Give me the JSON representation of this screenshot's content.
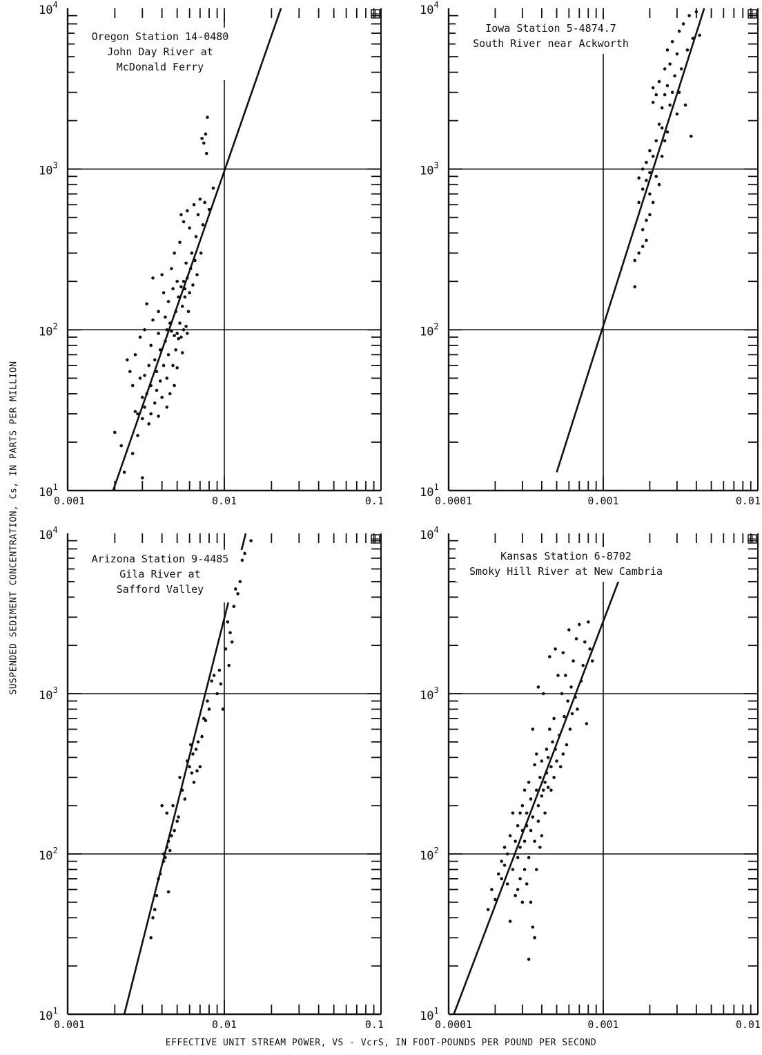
{
  "figure": {
    "ylabel": "SUSPENDED SEDIMENT CONCENTRATION, Cs, IN PARTS PER MILLION",
    "xlabel": "EFFECTIVE UNIT STREAM POWER, VS - VcrS, IN FOOT-POUNDS PER POUND PER SECOND"
  },
  "chart_data": [
    {
      "type": "scatter",
      "title": "Oregon Station 14-0480\nJohn Day River at\nMcDonald Ferry",
      "xscale": "log",
      "yscale": "log",
      "xlim": [
        0.001,
        0.1
      ],
      "ylim": [
        10,
        10000
      ],
      "xticklabels": [
        "0.001",
        "0.01",
        "0.1"
      ],
      "yticklabels": [
        "10^1",
        "10^2",
        "10^3",
        "10^4"
      ],
      "reference_lines": {
        "x": 0.01,
        "y": [
          100,
          1000
        ]
      },
      "fit_line": [
        [
          0.00195,
          10
        ],
        [
          0.023,
          10000
        ]
      ],
      "points": [
        [
          0.002,
          23
        ],
        [
          0.0022,
          19
        ],
        [
          0.0023,
          13
        ],
        [
          0.0024,
          65
        ],
        [
          0.0025,
          55
        ],
        [
          0.0026,
          45
        ],
        [
          0.0026,
          17
        ],
        [
          0.0027,
          31
        ],
        [
          0.0027,
          70
        ],
        [
          0.0028,
          30
        ],
        [
          0.0028,
          22
        ],
        [
          0.0029,
          50
        ],
        [
          0.0029,
          90
        ],
        [
          0.003,
          38
        ],
        [
          0.003,
          28
        ],
        [
          0.003,
          12
        ],
        [
          0.0031,
          100
        ],
        [
          0.0031,
          52
        ],
        [
          0.0031,
          33
        ],
        [
          0.0032,
          145
        ],
        [
          0.0032,
          40
        ],
        [
          0.0033,
          60
        ],
        [
          0.0033,
          26
        ],
        [
          0.0034,
          80
        ],
        [
          0.0034,
          45
        ],
        [
          0.0034,
          30
        ],
        [
          0.0035,
          210
        ],
        [
          0.0035,
          115
        ],
        [
          0.0036,
          65
        ],
        [
          0.0036,
          35
        ],
        [
          0.0037,
          55
        ],
        [
          0.0037,
          42
        ],
        [
          0.0038,
          130
        ],
        [
          0.0038,
          95
        ],
        [
          0.0038,
          29
        ],
        [
          0.0039,
          75
        ],
        [
          0.0039,
          48
        ],
        [
          0.004,
          220
        ],
        [
          0.004,
          38
        ],
        [
          0.0041,
          170
        ],
        [
          0.0041,
          60
        ],
        [
          0.0042,
          120
        ],
        [
          0.0042,
          85
        ],
        [
          0.0043,
          100
        ],
        [
          0.0043,
          50
        ],
        [
          0.0043,
          33
        ],
        [
          0.0044,
          150
        ],
        [
          0.0044,
          70
        ],
        [
          0.0045,
          110
        ],
        [
          0.0045,
          40
        ],
        [
          0.0046,
          240
        ],
        [
          0.0046,
          98
        ],
        [
          0.0047,
          180
        ],
        [
          0.0047,
          60
        ],
        [
          0.0048,
          300
        ],
        [
          0.0048,
          92
        ],
        [
          0.0048,
          45
        ],
        [
          0.0049,
          130
        ],
        [
          0.0049,
          75
        ],
        [
          0.005,
          200
        ],
        [
          0.005,
          95
        ],
        [
          0.005,
          58
        ],
        [
          0.0051,
          160
        ],
        [
          0.0051,
          88
        ],
        [
          0.0052,
          350
        ],
        [
          0.0052,
          110
        ],
        [
          0.0053,
          520
        ],
        [
          0.0053,
          185
        ],
        [
          0.0053,
          90
        ],
        [
          0.0054,
          140
        ],
        [
          0.0054,
          72
        ],
        [
          0.0055,
          470
        ],
        [
          0.0055,
          200
        ],
        [
          0.0055,
          100
        ],
        [
          0.0056,
          180
        ],
        [
          0.0056,
          160
        ],
        [
          0.0057,
          260
        ],
        [
          0.0057,
          105
        ],
        [
          0.0058,
          550
        ],
        [
          0.0058,
          210
        ],
        [
          0.0058,
          95
        ],
        [
          0.0059,
          130
        ],
        [
          0.006,
          430
        ],
        [
          0.006,
          170
        ],
        [
          0.0061,
          240
        ],
        [
          0.0062,
          300
        ],
        [
          0.0063,
          190
        ],
        [
          0.0064,
          600
        ],
        [
          0.0065,
          270
        ],
        [
          0.0066,
          380
        ],
        [
          0.0067,
          220
        ],
        [
          0.0068,
          520
        ],
        [
          0.007,
          650
        ],
        [
          0.0071,
          300
        ],
        [
          0.0072,
          1550
        ],
        [
          0.0073,
          450
        ],
        [
          0.0074,
          1450
        ],
        [
          0.0075,
          620
        ],
        [
          0.0076,
          1650
        ],
        [
          0.0077,
          1250
        ],
        [
          0.0078,
          2100
        ],
        [
          0.008,
          560
        ],
        [
          0.0085,
          760
        ]
      ]
    },
    {
      "type": "scatter",
      "title": "Iowa Station 5-4874.7\nSouth River near Ackworth",
      "xscale": "log",
      "yscale": "log",
      "xlim": [
        0.0001,
        0.01
      ],
      "ylim": [
        10,
        10000
      ],
      "xticklabels": [
        "0.0001",
        "0.001",
        "0.01"
      ],
      "yticklabels": [
        "10^1",
        "10^2",
        "10^3",
        "10^4"
      ],
      "reference_lines": {
        "x": 0.001,
        "y": [
          100,
          1000
        ]
      },
      "fit_line": [
        [
          0.0005,
          13
        ],
        [
          0.0045,
          10000
        ]
      ],
      "points": [
        [
          0.0016,
          185
        ],
        [
          0.0016,
          270
        ],
        [
          0.0017,
          300
        ],
        [
          0.0017,
          620
        ],
        [
          0.0017,
          880
        ],
        [
          0.0018,
          330
        ],
        [
          0.0018,
          420
        ],
        [
          0.0018,
          750
        ],
        [
          0.0018,
          1000
        ],
        [
          0.0019,
          360
        ],
        [
          0.0019,
          480
        ],
        [
          0.0019,
          850
        ],
        [
          0.0019,
          1100
        ],
        [
          0.002,
          520
        ],
        [
          0.002,
          700
        ],
        [
          0.002,
          950
        ],
        [
          0.002,
          1300
        ],
        [
          0.0021,
          620
        ],
        [
          0.0021,
          1200
        ],
        [
          0.0021,
          2600
        ],
        [
          0.0021,
          3200
        ],
        [
          0.0022,
          900
        ],
        [
          0.0022,
          1500
        ],
        [
          0.0022,
          2900
        ],
        [
          0.0023,
          800
        ],
        [
          0.0023,
          1900
        ],
        [
          0.0023,
          3500
        ],
        [
          0.0024,
          1200
        ],
        [
          0.0024,
          1800
        ],
        [
          0.0024,
          2400
        ],
        [
          0.0025,
          1500
        ],
        [
          0.0025,
          2900
        ],
        [
          0.0025,
          4200
        ],
        [
          0.0026,
          1700
        ],
        [
          0.0026,
          3300
        ],
        [
          0.0026,
          5500
        ],
        [
          0.0027,
          2500
        ],
        [
          0.0027,
          4500
        ],
        [
          0.0028,
          6200
        ],
        [
          0.0028,
          3000
        ],
        [
          0.0029,
          3800
        ],
        [
          0.003,
          5200
        ],
        [
          0.003,
          2200
        ],
        [
          0.0031,
          7200
        ],
        [
          0.0031,
          3000
        ],
        [
          0.0032,
          4200
        ],
        [
          0.0033,
          8000
        ],
        [
          0.0034,
          2500
        ],
        [
          0.0035,
          5500
        ],
        [
          0.0036,
          9000
        ],
        [
          0.0037,
          1600
        ],
        [
          0.0038,
          6500
        ],
        [
          0.004,
          9500
        ],
        [
          0.0042,
          6800
        ]
      ]
    },
    {
      "type": "scatter",
      "title": "Arizona Station 9-4485\nGila River at\nSafford Valley",
      "xscale": "log",
      "yscale": "log",
      "xlim": [
        0.001,
        0.1
      ],
      "ylim": [
        10,
        10000
      ],
      "xticklabels": [
        "0.001",
        "0.01",
        "0.1"
      ],
      "yticklabels": [
        "10^1",
        "10^2",
        "10^3",
        "10^4"
      ],
      "reference_lines": {
        "x": 0.01,
        "y": [
          100,
          1000
        ]
      },
      "fit_line": [
        [
          0.0023,
          10
        ],
        [
          0.0137,
          10000
        ]
      ],
      "points": [
        [
          0.0034,
          30
        ],
        [
          0.0035,
          40
        ],
        [
          0.0036,
          45
        ],
        [
          0.0037,
          55
        ],
        [
          0.0038,
          70
        ],
        [
          0.0039,
          75
        ],
        [
          0.004,
          200
        ],
        [
          0.0041,
          90
        ],
        [
          0.0041,
          100
        ],
        [
          0.0042,
          95
        ],
        [
          0.0043,
          110
        ],
        [
          0.0043,
          180
        ],
        [
          0.0044,
          58
        ],
        [
          0.0044,
          120
        ],
        [
          0.0045,
          105
        ],
        [
          0.0046,
          130
        ],
        [
          0.0047,
          200
        ],
        [
          0.0048,
          140
        ],
        [
          0.005,
          160
        ],
        [
          0.0051,
          170
        ],
        [
          0.0052,
          300
        ],
        [
          0.0054,
          250
        ],
        [
          0.0056,
          220
        ],
        [
          0.0058,
          380
        ],
        [
          0.006,
          350
        ],
        [
          0.0061,
          480
        ],
        [
          0.0062,
          320
        ],
        [
          0.0063,
          420
        ],
        [
          0.0064,
          280
        ],
        [
          0.0066,
          450
        ],
        [
          0.0067,
          330
        ],
        [
          0.0068,
          500
        ],
        [
          0.007,
          350
        ],
        [
          0.0072,
          540
        ],
        [
          0.0074,
          700
        ],
        [
          0.0076,
          680
        ],
        [
          0.0078,
          900
        ],
        [
          0.008,
          800
        ],
        [
          0.0083,
          1200
        ],
        [
          0.0086,
          1300
        ],
        [
          0.009,
          1000
        ],
        [
          0.0093,
          1400
        ],
        [
          0.0095,
          1150
        ],
        [
          0.0098,
          800
        ],
        [
          0.0102,
          1900
        ],
        [
          0.0105,
          2800
        ],
        [
          0.0107,
          1500
        ],
        [
          0.0109,
          2400
        ],
        [
          0.0112,
          2100
        ],
        [
          0.0115,
          3500
        ],
        [
          0.0118,
          4500
        ],
        [
          0.0122,
          4200
        ],
        [
          0.0126,
          5000
        ],
        [
          0.013,
          6800
        ],
        [
          0.0135,
          7500
        ],
        [
          0.0148,
          9000
        ]
      ]
    },
    {
      "type": "scatter",
      "title": "Kansas Station 6-8702\nSmoky Hill River at New Cambria",
      "xscale": "log",
      "yscale": "log",
      "xlim": [
        0.0001,
        0.01
      ],
      "ylim": [
        10,
        10000
      ],
      "xticklabels": [
        "0.0001",
        "0.001",
        "0.01"
      ],
      "yticklabels": [
        "10^1",
        "10^2",
        "10^3",
        "10^4"
      ],
      "reference_lines": {
        "x": 0.001,
        "y": [
          100,
          1000
        ]
      },
      "fit_line": [
        [
          0.000108,
          10
        ],
        [
          0.0013,
          5500
        ]
      ],
      "points": [
        [
          0.00018,
          45
        ],
        [
          0.00019,
          60
        ],
        [
          0.0002,
          52
        ],
        [
          0.00021,
          75
        ],
        [
          0.00022,
          70
        ],
        [
          0.00022,
          90
        ],
        [
          0.00023,
          85
        ],
        [
          0.00023,
          110
        ],
        [
          0.00024,
          65
        ],
        [
          0.00024,
          100
        ],
        [
          0.00025,
          38
        ],
        [
          0.00025,
          130
        ],
        [
          0.00026,
          80
        ],
        [
          0.00026,
          180
        ],
        [
          0.00027,
          55
        ],
        [
          0.00027,
          120
        ],
        [
          0.00028,
          95
        ],
        [
          0.00028,
          150
        ],
        [
          0.00028,
          60
        ],
        [
          0.00029,
          70
        ],
        [
          0.00029,
          180
        ],
        [
          0.00029,
          110
        ],
        [
          0.0003,
          50
        ],
        [
          0.0003,
          200
        ],
        [
          0.0003,
          140
        ],
        [
          0.00031,
          80
        ],
        [
          0.00031,
          250
        ],
        [
          0.00031,
          120
        ],
        [
          0.00032,
          65
        ],
        [
          0.00032,
          180
        ],
        [
          0.00032,
          150
        ],
        [
          0.00033,
          22
        ],
        [
          0.00033,
          95
        ],
        [
          0.00033,
          280
        ],
        [
          0.00034,
          50
        ],
        [
          0.00034,
          220
        ],
        [
          0.00034,
          140
        ],
        [
          0.00035,
          35
        ],
        [
          0.00035,
          600
        ],
        [
          0.00035,
          170
        ],
        [
          0.00036,
          30
        ],
        [
          0.00036,
          360
        ],
        [
          0.00036,
          120
        ],
        [
          0.00037,
          80
        ],
        [
          0.00037,
          420
        ],
        [
          0.00037,
          250
        ],
        [
          0.00038,
          1100
        ],
        [
          0.00038,
          200
        ],
        [
          0.00038,
          160
        ],
        [
          0.00039,
          300
        ],
        [
          0.00039,
          110
        ],
        [
          0.0004,
          380
        ],
        [
          0.0004,
          230
        ],
        [
          0.0004,
          130
        ],
        [
          0.00041,
          1000
        ],
        [
          0.00041,
          250
        ],
        [
          0.00042,
          280
        ],
        [
          0.00042,
          180
        ],
        [
          0.00043,
          450
        ],
        [
          0.00043,
          320
        ],
        [
          0.00044,
          260
        ],
        [
          0.00044,
          400
        ],
        [
          0.00045,
          1700
        ],
        [
          0.00045,
          600
        ],
        [
          0.00046,
          350
        ],
        [
          0.00046,
          250
        ],
        [
          0.00047,
          500
        ],
        [
          0.00048,
          700
        ],
        [
          0.00048,
          300
        ],
        [
          0.00049,
          1900
        ],
        [
          0.00049,
          450
        ],
        [
          0.0005,
          380
        ],
        [
          0.00051,
          1300
        ],
        [
          0.00052,
          550
        ],
        [
          0.00053,
          350
        ],
        [
          0.00054,
          1000
        ],
        [
          0.00055,
          1800
        ],
        [
          0.00055,
          420
        ],
        [
          0.00056,
          720
        ],
        [
          0.00057,
          1300
        ],
        [
          0.00058,
          480
        ],
        [
          0.00059,
          900
        ],
        [
          0.0006,
          2500
        ],
        [
          0.00061,
          600
        ],
        [
          0.00062,
          1100
        ],
        [
          0.00063,
          750
        ],
        [
          0.00064,
          1600
        ],
        [
          0.00066,
          950
        ],
        [
          0.00067,
          2200
        ],
        [
          0.00068,
          800
        ],
        [
          0.0007,
          2700
        ],
        [
          0.00072,
          1200
        ],
        [
          0.00074,
          1500
        ],
        [
          0.00076,
          2100
        ],
        [
          0.00078,
          650
        ],
        [
          0.0008,
          2800
        ],
        [
          0.00082,
          1900
        ],
        [
          0.00085,
          1600
        ]
      ]
    }
  ]
}
